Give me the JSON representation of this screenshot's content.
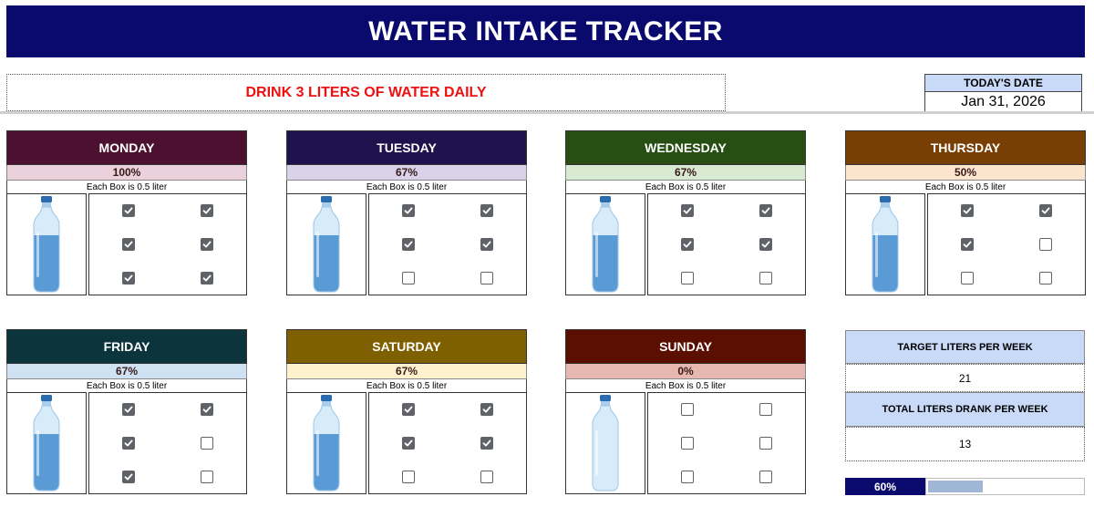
{
  "title": "WATER INTAKE TRACKER",
  "goal": "DRINK 3 LITERS OF WATER DAILY",
  "date": {
    "label": "TODAY'S DATE",
    "value": "Jan 31, 2026"
  },
  "box_note": "Each Box is 0.5 liter",
  "days": [
    {
      "name": "MONDAY",
      "pct": "100%",
      "head_color": "#4c1130",
      "pct_color": "#ead1dc",
      "checks": [
        true,
        true,
        true,
        true,
        true,
        true
      ],
      "fill_level": 1.0
    },
    {
      "name": "TUESDAY",
      "pct": "67%",
      "head_color": "#20124d",
      "pct_color": "#d9d2e9",
      "checks": [
        true,
        true,
        true,
        true,
        false,
        false
      ],
      "fill_level": 0.67
    },
    {
      "name": "WEDNESDAY",
      "pct": "67%",
      "head_color": "#274e13",
      "pct_color": "#d9ead3",
      "checks": [
        true,
        true,
        true,
        true,
        false,
        false
      ],
      "fill_level": 0.67
    },
    {
      "name": "THURSDAY",
      "pct": "50%",
      "head_color": "#783f04",
      "pct_color": "#fce5cd",
      "checks": [
        true,
        true,
        true,
        false,
        false,
        false
      ],
      "fill_level": 0.5
    },
    {
      "name": "FRIDAY",
      "pct": "67%",
      "head_color": "#0c343d",
      "pct_color": "#cfe2f3",
      "checks": [
        true,
        true,
        true,
        false,
        true,
        false
      ],
      "fill_level": 0.67
    },
    {
      "name": "SATURDAY",
      "pct": "67%",
      "head_color": "#7f6000",
      "pct_color": "#fff2cc",
      "checks": [
        true,
        true,
        true,
        true,
        false,
        false
      ],
      "fill_level": 0.67
    },
    {
      "name": "SUNDAY",
      "pct": "0%",
      "head_color": "#5b0f00",
      "pct_color": "#e6b8af",
      "checks": [
        false,
        false,
        false,
        false,
        false,
        false
      ],
      "fill_level": 0.0
    }
  ],
  "stats": {
    "target_label": "TARGET LITERS PER WEEK",
    "target_value": "21",
    "total_label": "TOTAL LITERS DRANK PER WEEK",
    "total_value": "13"
  },
  "progress": {
    "label": "60%",
    "fraction": 0.6
  },
  "colors": {
    "title_bg": "#0a0a6e",
    "goal_text": "#ee1111",
    "stat_bg": "#c9daf8",
    "bottle_water": "#5b9bd5",
    "bottle_empty": "#cfe6f7"
  }
}
